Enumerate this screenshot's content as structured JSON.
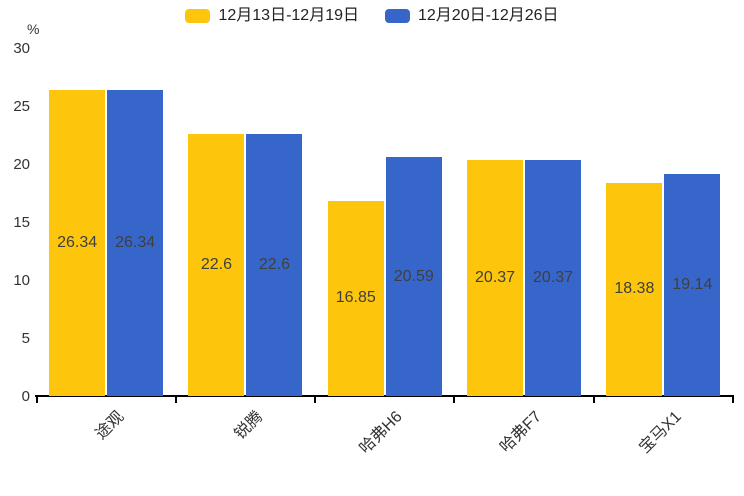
{
  "chart_data": {
    "type": "bar",
    "title": "",
    "categories": [
      "途观",
      "锐腾",
      "哈弗H6",
      "哈弗F7",
      "宝马X1"
    ],
    "series": [
      {
        "name": "12月13日-12月19日",
        "color": "#FDC50B",
        "values": [
          26.34,
          22.6,
          16.85,
          20.37,
          18.38
        ]
      },
      {
        "name": "12月20日-12月26日",
        "color": "#3766CB",
        "values": [
          26.34,
          22.6,
          20.59,
          20.37,
          19.14
        ]
      }
    ],
    "ylabel_unit": "%",
    "ylim": [
      0,
      30
    ],
    "yticks": [
      0,
      5,
      10,
      15,
      20,
      25,
      30
    ],
    "grid": false,
    "legend_position": "top",
    "value_label_position": "inside-center",
    "value_label_color": "#3f3f3f",
    "axis_color": "#000000",
    "tick_label_color": "#333333"
  }
}
